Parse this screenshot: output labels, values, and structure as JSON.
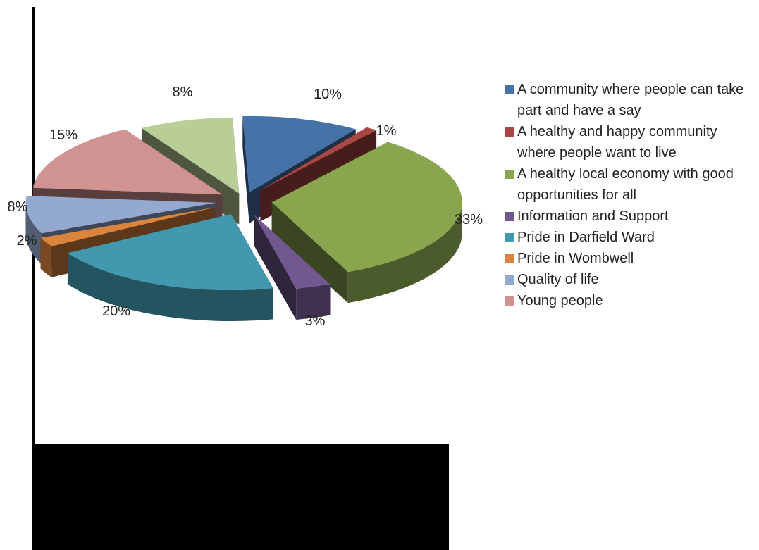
{
  "chart_data": {
    "type": "pie",
    "style": "3d-exploded",
    "legend_position": "right",
    "slices": [
      {
        "label": "A community where people can take part and have a say",
        "value": 10,
        "display": "10%",
        "color": "#4572A7"
      },
      {
        "label": "A healthy and happy community where people want to live",
        "value": 1,
        "display": "1%",
        "color": "#AA4643"
      },
      {
        "label": "A healthy local economy with good opportunities for all",
        "value": 33,
        "display": "33%",
        "color": "#89A54E"
      },
      {
        "label": "Information and Support",
        "value": 3,
        "display": "3%",
        "color": "#71588F"
      },
      {
        "label": "Pride in Darfield Ward",
        "value": 20,
        "display": "20%",
        "color": "#4198AF"
      },
      {
        "label": "Pride in Wombwell",
        "value": 2,
        "display": "2%",
        "color": "#DB843D"
      },
      {
        "label": "Quality of life",
        "value": 8,
        "display": "8%",
        "color": "#93A9CF"
      },
      {
        "label": "Young people",
        "value": 15,
        "display": "15%",
        "color": "#D19392"
      },
      {
        "label": "",
        "value": 8,
        "display": "8%",
        "color": "#B9CD96"
      }
    ]
  }
}
